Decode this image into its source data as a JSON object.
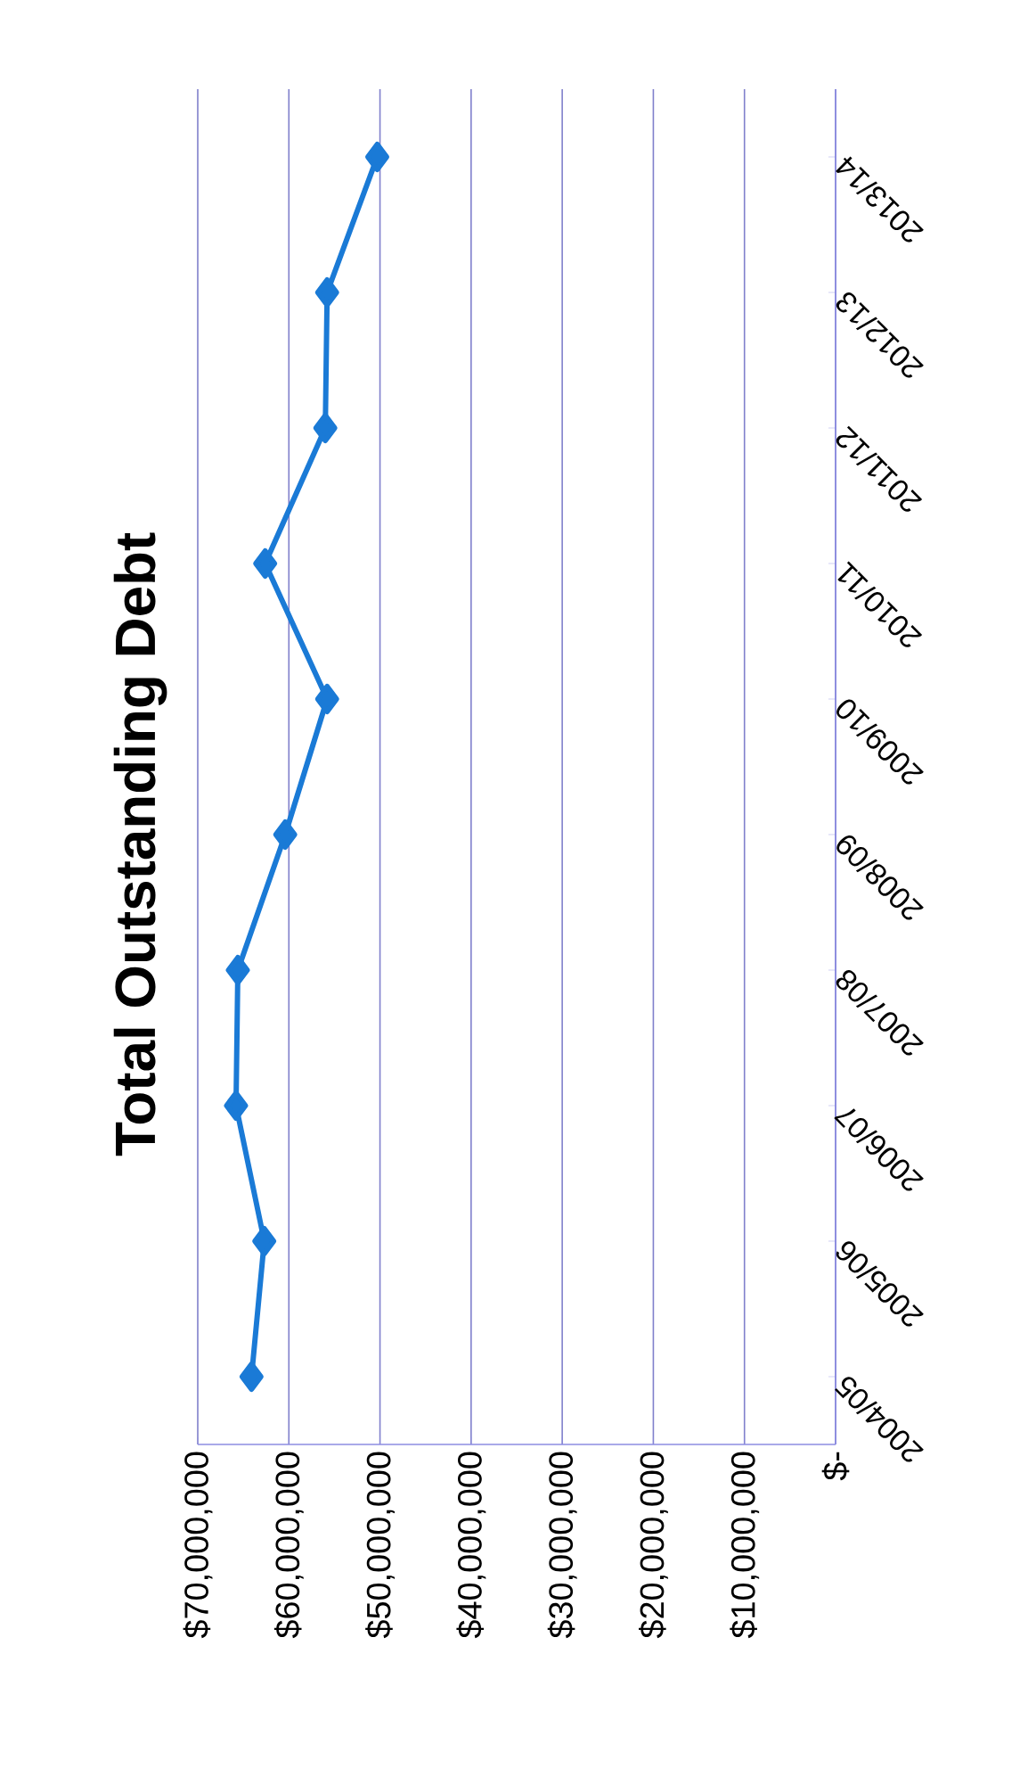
{
  "chart_data": {
    "type": "line",
    "orientation": "horizontal",
    "title": "Total Outstanding Debt",
    "categories": [
      "2013/14",
      "2012/13",
      "2011/12",
      "2010/11",
      "2009/10",
      "2008/09",
      "2007/08",
      "2006/07",
      "2005/06",
      "2004/05"
    ],
    "series": [
      {
        "color": "#1a7ad6",
        "values": [
          50300000,
          55800000,
          56000000,
          62600000,
          55800000,
          60400000,
          65600000,
          65800000,
          62700000,
          64100000
        ]
      }
    ],
    "xlim": [
      70000000,
      0
    ],
    "xticks": [
      {
        "value": 0,
        "label": "$-"
      },
      {
        "value": 10000000,
        "label": "$10,000,000"
      },
      {
        "value": 20000000,
        "label": "$20,000,000"
      },
      {
        "value": 30000000,
        "label": "$30,000,000"
      },
      {
        "value": 40000000,
        "label": "$40,000,000"
      },
      {
        "value": 50000000,
        "label": "$50,000,000"
      },
      {
        "value": 60000000,
        "label": "$60,000,000"
      },
      {
        "value": 70000000,
        "label": "$70,000,000"
      }
    ],
    "grid": "x",
    "marker": "diamond",
    "line_style": "solid"
  }
}
